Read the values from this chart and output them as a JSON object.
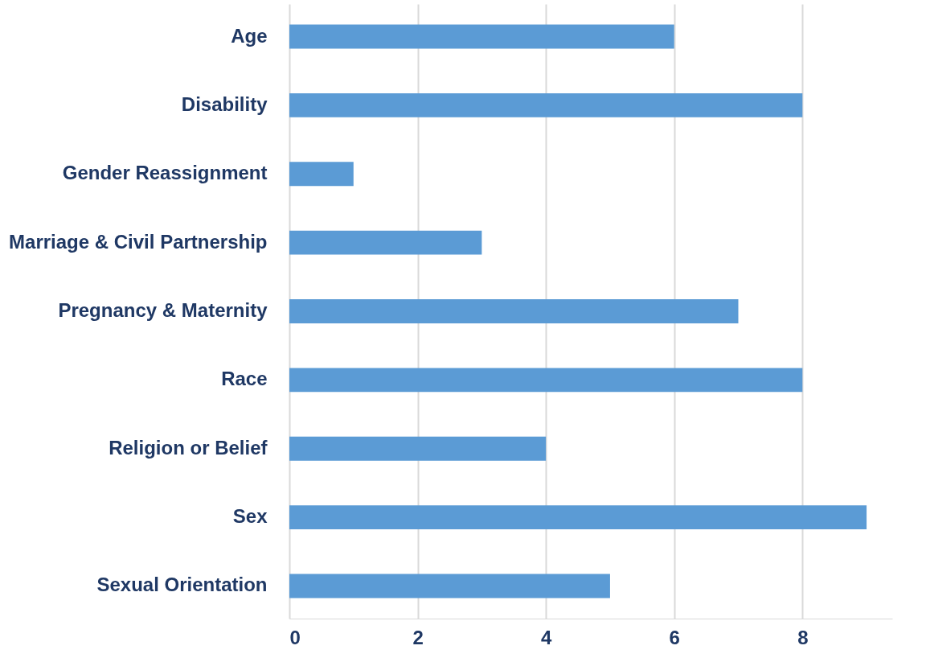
{
  "chart_data": {
    "type": "bar",
    "orientation": "horizontal",
    "categories": [
      "Age",
      "Disability",
      "Gender Reassignment",
      "Marriage & Civil Partnership",
      "Pregnancy & Maternity",
      "Race",
      "Religion or Belief",
      "Sex",
      "Sexual Orientation"
    ],
    "values": [
      6,
      8,
      1,
      3,
      7,
      8,
      4,
      9,
      5
    ],
    "color": "#5b9bd5",
    "xlim": [
      0,
      9.4
    ],
    "xticks": [
      0,
      2,
      4,
      6,
      8
    ],
    "grid": "x"
  }
}
